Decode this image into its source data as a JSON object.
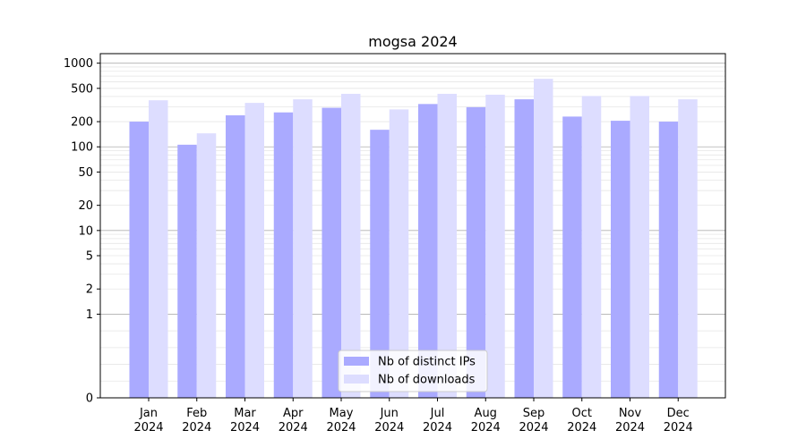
{
  "chart_data": {
    "type": "bar",
    "title": "mogsa 2024",
    "xlabel": "",
    "ylabel": "",
    "yscale": "symlog",
    "ylim": [
      0,
      1300
    ],
    "yticks": [
      0,
      1,
      2,
      5,
      10,
      20,
      50,
      100,
      200,
      500,
      1000
    ],
    "grid": true,
    "legend_position": "bottom-center",
    "categories": [
      [
        "Jan",
        "2024"
      ],
      [
        "Feb",
        "2024"
      ],
      [
        "Mar",
        "2024"
      ],
      [
        "Apr",
        "2024"
      ],
      [
        "May",
        "2024"
      ],
      [
        "Jun",
        "2024"
      ],
      [
        "Jul",
        "2024"
      ],
      [
        "Aug",
        "2024"
      ],
      [
        "Sep",
        "2024"
      ],
      [
        "Oct",
        "2024"
      ],
      [
        "Nov",
        "2024"
      ],
      [
        "Dec",
        "2024"
      ]
    ],
    "series": [
      {
        "name": "Nb of distinct IPs",
        "color": "#aaaaff",
        "values": [
          200,
          106,
          238,
          258,
          293,
          160,
          325,
          298,
          370,
          230,
          205,
          200
        ]
      },
      {
        "name": "Nb of downloads",
        "color": "#ddddff",
        "values": [
          360,
          145,
          335,
          370,
          430,
          280,
          430,
          420,
          650,
          405,
          405,
          370
        ]
      }
    ]
  }
}
